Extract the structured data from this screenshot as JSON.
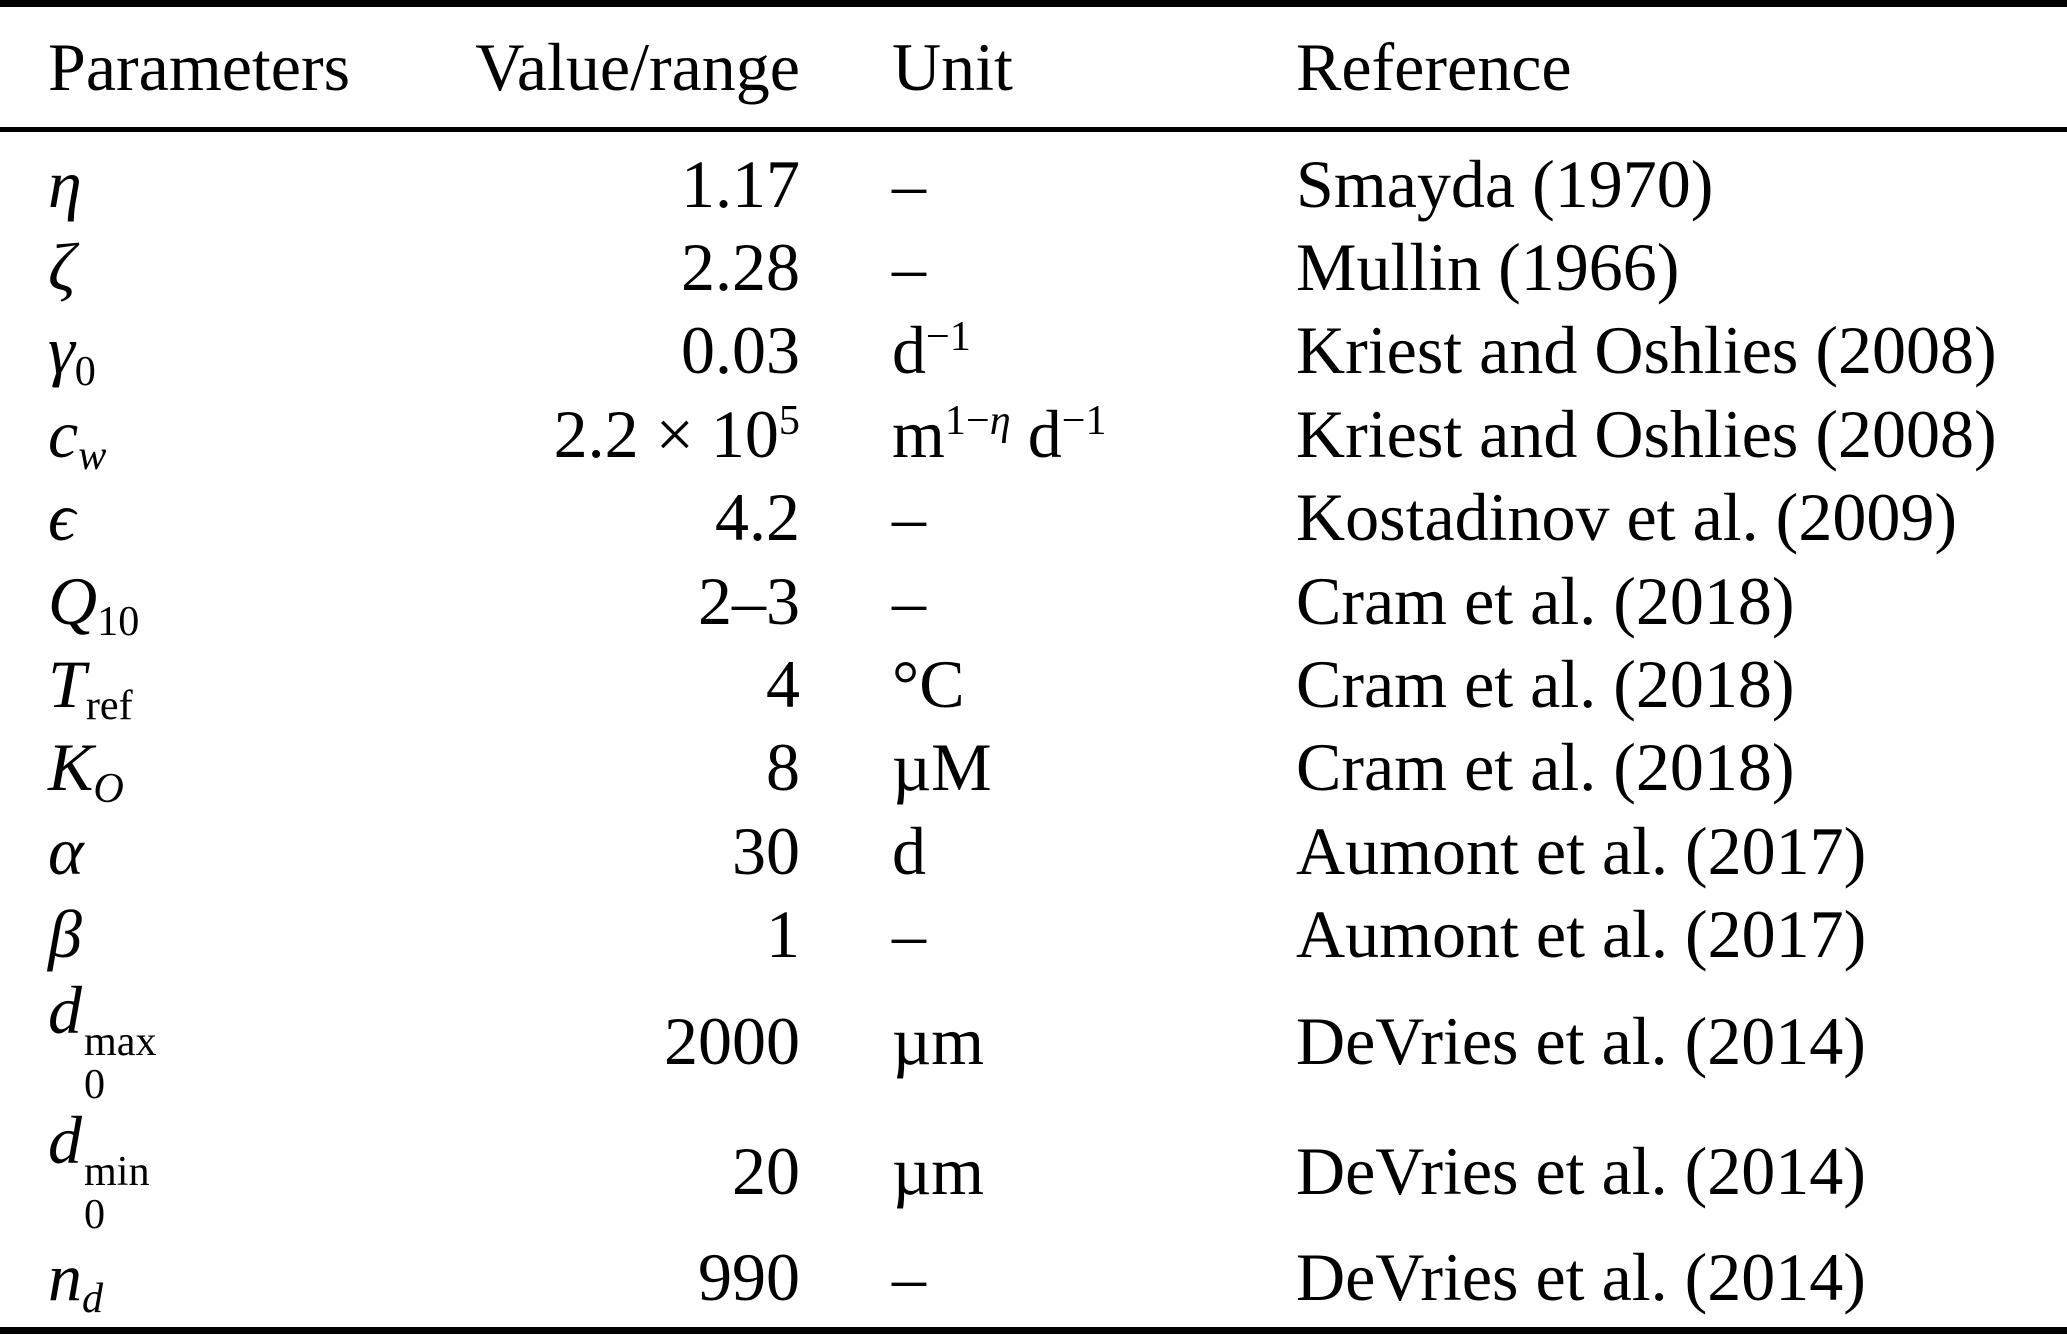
{
  "page": {
    "background": "#ffffff",
    "text_color": "#000000",
    "rule_color": "#000000"
  },
  "table": {
    "columns": [
      {
        "key": "param",
        "label": "Parameters",
        "align": "left"
      },
      {
        "key": "value",
        "label": "Value/range",
        "align": "right"
      },
      {
        "key": "unit",
        "label": "Unit",
        "align": "left"
      },
      {
        "key": "ref",
        "label": "Reference",
        "align": "left"
      }
    ],
    "rows": [
      {
        "param_html": "<i>η</i>",
        "value_html": "1.17",
        "unit_html": "–",
        "ref": "Smayda (1970)"
      },
      {
        "param_html": "<i>ζ</i>",
        "value_html": "2.28",
        "unit_html": "–",
        "ref": "Mullin (1966)"
      },
      {
        "param_html": "<i>γ</i><sub>0</sub>",
        "value_html": "0.03",
        "unit_html": "d<sup>−1</sup>",
        "ref": "Kriest and Oshlies (2008)"
      },
      {
        "param_html": "<i>c</i><sub><i>w</i></sub>",
        "value_html": "2.2 × 10<sup>5</sup>",
        "unit_html": "m<sup>1−<i>η</i></sup> d<sup>−1</sup>",
        "ref": "Kriest and Oshlies (2008)"
      },
      {
        "param_html": "<i>ϵ</i>",
        "value_html": "4.2",
        "unit_html": "–",
        "ref": "Kostadinov et al. (2009)"
      },
      {
        "param_html": "<i>Q</i><sub>10</sub>",
        "value_html": "2–3",
        "unit_html": "–",
        "ref": "Cram et al. (2018)"
      },
      {
        "param_html": "<i>T</i><sub>ref</sub>",
        "value_html": "4",
        "unit_html": "°C",
        "ref": "Cram et al. (2018)"
      },
      {
        "param_html": "<i>K</i><sub><i>O</i></sub>",
        "value_html": "8",
        "unit_html": "µM",
        "ref": "Cram et al. (2018)"
      },
      {
        "param_html": "<i>α</i>",
        "value_html": "30",
        "unit_html": "d",
        "ref": "Aumont et al. (2017)"
      },
      {
        "param_html": "<i>β</i>",
        "value_html": "1",
        "unit_html": "–",
        "ref": "Aumont et al. (2017)"
      },
      {
        "param_html": "<i>d</i><span class=\"ss\"><span>max</span><span>0</span></span>",
        "value_html": "2000",
        "unit_html": "µm",
        "ref": "DeVries et al. (2014)"
      },
      {
        "param_html": "<i>d</i><span class=\"ss\"><span>min</span><span>0</span></span>",
        "value_html": "20",
        "unit_html": "µm",
        "ref": "DeVries et al. (2014)"
      },
      {
        "param_html": "<i>n</i><sub><i>d</i></sub>",
        "value_html": "990",
        "unit_html": "–",
        "ref": "DeVries et al. (2014)"
      }
    ]
  }
}
